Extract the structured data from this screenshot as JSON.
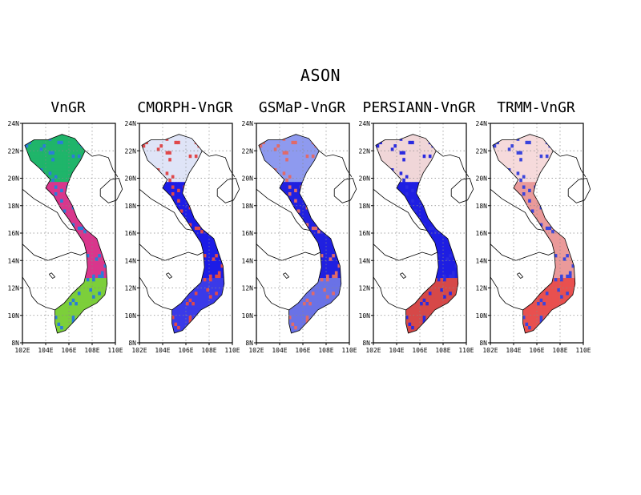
{
  "title": "ASON",
  "lat_labels": [
    "24N",
    "22N",
    "20N",
    "18N",
    "16N",
    "14N",
    "12N",
    "10N",
    "8N"
  ],
  "lon_labels": [
    "102E",
    "104E",
    "106E",
    "108E",
    "110E"
  ],
  "panels": [
    {
      "title": "VnGR",
      "scheme": "absolute",
      "colors": {
        "north": "#1fb56a",
        "central": "#d9368c",
        "south": "#7ccf3a",
        "accent": "#2a7dd9"
      }
    },
    {
      "title": "CMORPH-VnGR",
      "scheme": "diff",
      "colors": {
        "north": "#dfe4f7",
        "central": "#1c1ce6",
        "south": "#3a3ae8",
        "accent": "#e0484a"
      }
    },
    {
      "title": "GSMaP-VnGR",
      "scheme": "diff",
      "colors": {
        "north": "#8e9aef",
        "central": "#2020e0",
        "south": "#6a72e6",
        "accent": "#e06a6a"
      }
    },
    {
      "title": "PERSIANN-VnGR",
      "scheme": "diff",
      "colors": {
        "north": "#f0d6d8",
        "central": "#1e1ee2",
        "south": "#d64848",
        "accent": "#2a2ae0"
      }
    },
    {
      "title": "TRMM-VnGR",
      "scheme": "diff",
      "colors": {
        "north": "#f6dadb",
        "central": "#ea9a9a",
        "south": "#e8504f",
        "accent": "#3a44dd"
      }
    }
  ]
}
